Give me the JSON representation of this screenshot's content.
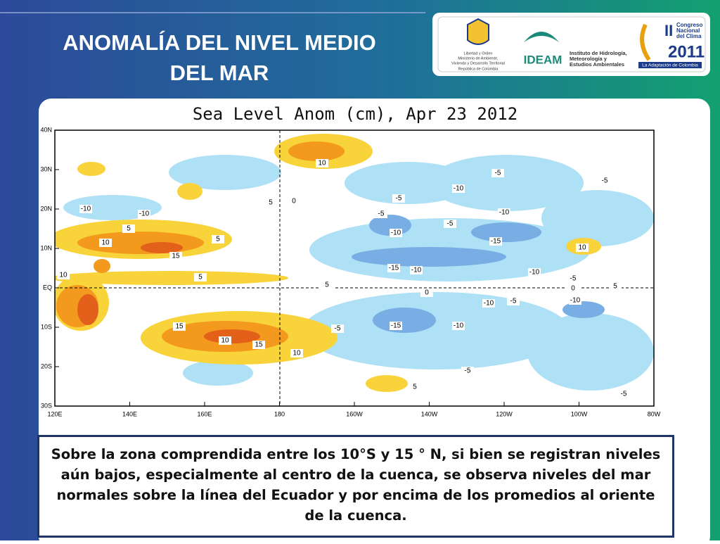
{
  "header": {
    "title_lines": [
      "ANOMALÍA DEL NIVEL MEDIO",
      "DEL MAR"
    ]
  },
  "logos": {
    "ministry": [
      "Libertad y Orden",
      "Ministerio de Ambiente,",
      "Vivienda y Desarrollo Territorial",
      "República de Colombia"
    ],
    "ideam": {
      "name": "IDEAM",
      "subtitle": [
        "Instituto de Hidrología,",
        "Meteorología y",
        "Estudios Ambientales"
      ]
    },
    "congreso": {
      "lines": [
        "II",
        "Congreso",
        "Nacional",
        "del Clima",
        "2011"
      ],
      "tagline": "La Adaptación de Colombia"
    }
  },
  "map": {
    "title": "Sea Level Anom (cm), Apr 23 2012",
    "y_labels": [
      "40N",
      "30N",
      "20N",
      "10N",
      "EQ",
      "10S",
      "20S",
      "30S"
    ],
    "x_labels": [
      "120E",
      "140E",
      "160E",
      "180",
      "160W",
      "140W",
      "120W",
      "100W",
      "80W"
    ],
    "contour_labels": [
      "-10",
      "-10",
      "5",
      "10",
      "15",
      "5",
      "10",
      "5",
      "5",
      "0",
      "-5",
      "-10",
      "-10",
      "-5",
      "-15",
      "-10",
      "-15",
      "-10",
      "-10",
      "-10",
      "-5",
      "-10",
      "-15",
      "-10",
      "-5",
      "15",
      "10",
      "15",
      "10",
      "5",
      "-5",
      "-5",
      "-5",
      "10",
      "10",
      "5",
      "-5",
      "0",
      "5",
      "-5",
      "0",
      "-5"
    ]
  },
  "text_box": {
    "text": "Sobre la zona comprendida entre los 10°S  y 15 ° N, si bien se registran niveles aún bajos, especialmente al centro de la cuenca, se observa niveles del mar normales sobre la línea del Ecuador y por encima de los promedios al oriente de la cuenca."
  }
}
